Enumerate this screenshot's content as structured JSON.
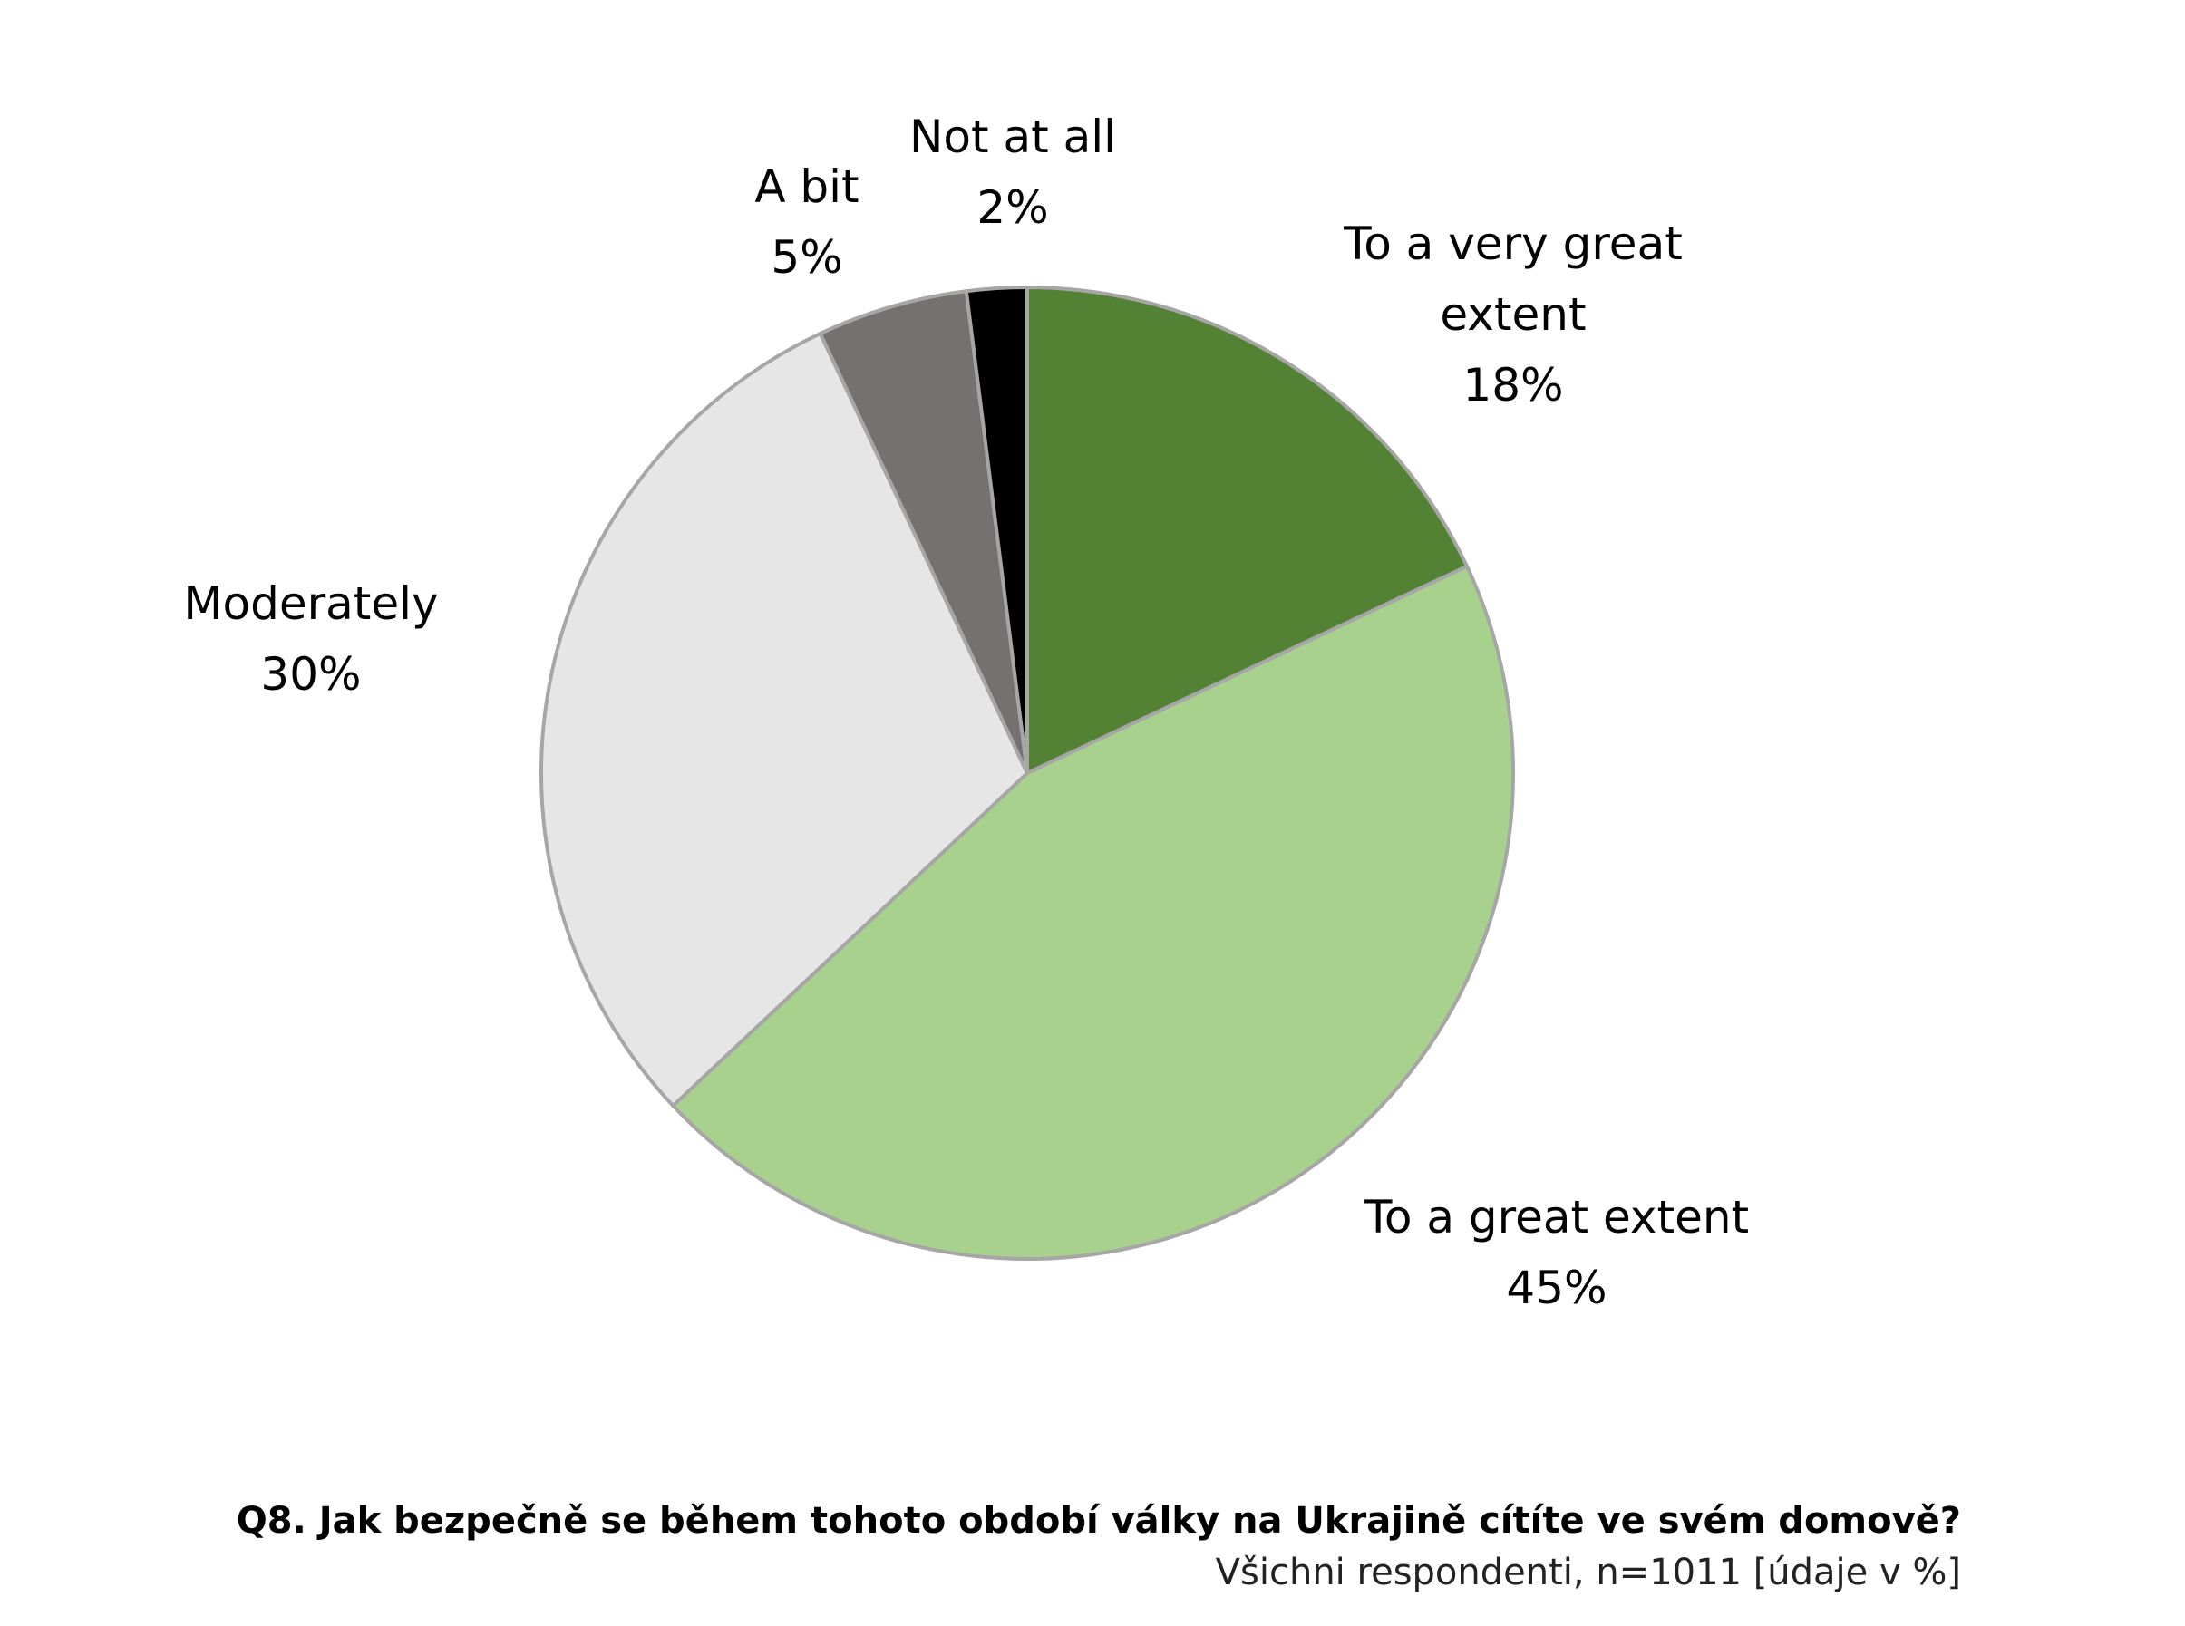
{
  "chart_data": {
    "type": "pie",
    "title": "Q8. Jak bezpečně se během tohoto období války na Ukrajině cítíte ve svém domově?",
    "subtitle": "Všichni respondenti, n=1011 [údaje v %]",
    "categories": [
      "To a very great extent",
      "To a great extent",
      "Moderately",
      "A bit",
      "Not at all"
    ],
    "values": [
      18,
      45,
      30,
      5,
      2
    ],
    "value_labels": [
      "18%",
      "45%",
      "30%",
      "5%",
      "2%"
    ],
    "colors": [
      "#548235",
      "#a9d18e",
      "#e7e6e6",
      "#767171",
      "#000000"
    ]
  }
}
